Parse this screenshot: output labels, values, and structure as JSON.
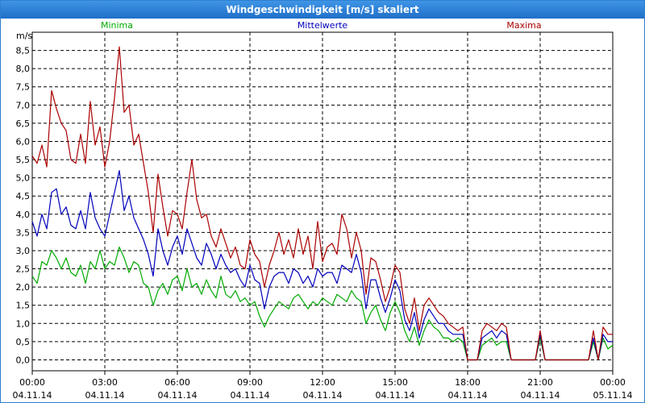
{
  "window": {
    "title": "Windgeschwindigkeit [m/s] skaliert"
  },
  "chart_data": {
    "type": "line",
    "title": "Windgeschwindigkeit [m/s] skaliert",
    "ylabel": "m/s",
    "xlabel": "",
    "ylim": [
      -0.3,
      9.0
    ],
    "xlim": [
      0,
      24
    ],
    "grid": true,
    "legend_placement": "top",
    "y_ticks": [
      "0,0",
      "0,5",
      "1,0",
      "1,5",
      "2,0",
      "2,5",
      "3,0",
      "3,5",
      "4,0",
      "4,5",
      "5,0",
      "5,5",
      "6,0",
      "6,5",
      "7,0",
      "7,5",
      "8,0",
      "8,5"
    ],
    "x_ticks": [
      {
        "time": "00:00",
        "date": "04.11.14"
      },
      {
        "time": "03:00",
        "date": "04.11.14"
      },
      {
        "time": "06:00",
        "date": "04.11.14"
      },
      {
        "time": "09:00",
        "date": "04.11.14"
      },
      {
        "time": "12:00",
        "date": "04.11.14"
      },
      {
        "time": "15:00",
        "date": "04.11.14"
      },
      {
        "time": "18:00",
        "date": "04.11.14"
      },
      {
        "time": "21:00",
        "date": "04.11.14"
      },
      {
        "time": "00:00",
        "date": "05.11.14"
      }
    ],
    "series": [
      {
        "name": "Minima",
        "color": "#00aa00",
        "legend_pos": "left",
        "x": [
          0,
          0.2,
          0.4,
          0.6,
          0.8,
          1,
          1.2,
          1.4,
          1.6,
          1.8,
          2,
          2.2,
          2.4,
          2.6,
          2.8,
          3,
          3.2,
          3.4,
          3.6,
          3.8,
          4,
          4.2,
          4.4,
          4.6,
          4.8,
          5,
          5.2,
          5.4,
          5.6,
          5.8,
          6,
          6.2,
          6.4,
          6.6,
          6.8,
          7,
          7.2,
          7.4,
          7.6,
          7.8,
          8,
          8.2,
          8.4,
          8.6,
          8.8,
          9,
          9.2,
          9.4,
          9.6,
          9.8,
          10,
          10.2,
          10.4,
          10.6,
          10.8,
          11,
          11.2,
          11.4,
          11.6,
          11.8,
          12,
          12.2,
          12.4,
          12.6,
          12.8,
          13,
          13.2,
          13.4,
          13.6,
          13.8,
          14,
          14.2,
          14.4,
          14.6,
          14.8,
          15,
          15.2,
          15.4,
          15.6,
          15.8,
          16,
          16.2,
          16.4,
          16.6,
          16.8,
          17,
          17.2,
          17.4,
          17.6,
          17.8,
          18,
          18.2,
          18.4,
          18.6,
          18.8,
          19,
          19.2,
          19.4,
          19.6,
          19.8,
          20,
          20.2,
          20.4,
          20.6,
          20.8,
          21,
          21.2,
          21.4,
          21.6,
          21.8,
          22,
          22.2,
          22.4,
          22.6,
          22.8,
          23,
          23.2,
          23.4,
          23.6,
          23.8,
          24
        ],
        "y": [
          2.3,
          2.1,
          2.7,
          2.6,
          3.0,
          2.8,
          2.5,
          2.8,
          2.4,
          2.3,
          2.6,
          2.1,
          2.7,
          2.5,
          3.0,
          2.5,
          2.7,
          2.6,
          3.1,
          2.8,
          2.4,
          2.7,
          2.6,
          2.1,
          2.0,
          1.5,
          1.9,
          2.1,
          1.8,
          2.2,
          2.3,
          1.9,
          2.5,
          2.0,
          2.1,
          1.8,
          2.2,
          1.9,
          1.7,
          2.3,
          1.8,
          1.7,
          1.9,
          1.6,
          1.7,
          1.5,
          1.6,
          1.2,
          0.9,
          1.2,
          1.4,
          1.6,
          1.5,
          1.4,
          1.7,
          1.8,
          1.6,
          1.4,
          1.6,
          1.5,
          1.7,
          1.6,
          1.5,
          1.8,
          1.7,
          1.6,
          1.9,
          1.7,
          1.6,
          1.0,
          1.3,
          1.5,
          1.1,
          0.8,
          1.3,
          1.6,
          1.3,
          0.8,
          0.5,
          0.9,
          0.4,
          0.8,
          1.1,
          0.9,
          0.8,
          0.6,
          0.6,
          0.5,
          0.6,
          0.5,
          0.0,
          0.0,
          0.0,
          0.4,
          0.5,
          0.6,
          0.4,
          0.5,
          0.5,
          0.0,
          0.0,
          0.0,
          0.0,
          0.0,
          0.0,
          0.6,
          0.0,
          0.0,
          0.0,
          0.0,
          0.0,
          0.0,
          0.0,
          0.0,
          0.0,
          0.0,
          0.5,
          0.0,
          0.6,
          0.3,
          0.4
        ]
      },
      {
        "name": "Mittelwerte",
        "color": "#0000bb",
        "legend_pos": "center",
        "x": [
          0,
          0.2,
          0.4,
          0.6,
          0.8,
          1,
          1.2,
          1.4,
          1.6,
          1.8,
          2,
          2.2,
          2.4,
          2.6,
          2.8,
          3,
          3.2,
          3.4,
          3.6,
          3.8,
          4,
          4.2,
          4.4,
          4.6,
          4.8,
          5,
          5.2,
          5.4,
          5.6,
          5.8,
          6,
          6.2,
          6.4,
          6.6,
          6.8,
          7,
          7.2,
          7.4,
          7.6,
          7.8,
          8,
          8.2,
          8.4,
          8.6,
          8.8,
          9,
          9.2,
          9.4,
          9.6,
          9.8,
          10,
          10.2,
          10.4,
          10.6,
          10.8,
          11,
          11.2,
          11.4,
          11.6,
          11.8,
          12,
          12.2,
          12.4,
          12.6,
          12.8,
          13,
          13.2,
          13.4,
          13.6,
          13.8,
          14,
          14.2,
          14.4,
          14.6,
          14.8,
          15,
          15.2,
          15.4,
          15.6,
          15.8,
          16,
          16.2,
          16.4,
          16.6,
          16.8,
          17,
          17.2,
          17.4,
          17.6,
          17.8,
          18,
          18.2,
          18.4,
          18.6,
          18.8,
          19,
          19.2,
          19.4,
          19.6,
          19.8,
          20,
          20.2,
          20.4,
          20.6,
          20.8,
          21,
          21.2,
          21.4,
          21.6,
          21.8,
          22,
          22.2,
          22.4,
          22.6,
          22.8,
          23,
          23.2,
          23.4,
          23.6,
          23.8,
          24
        ],
        "y": [
          3.8,
          3.4,
          4.0,
          3.6,
          4.6,
          4.7,
          4.0,
          4.2,
          3.7,
          3.6,
          4.1,
          3.6,
          4.6,
          3.9,
          3.6,
          3.4,
          4.0,
          4.6,
          5.2,
          4.1,
          4.5,
          3.9,
          3.6,
          3.3,
          2.9,
          2.3,
          3.6,
          3.0,
          2.6,
          3.1,
          3.4,
          2.9,
          3.6,
          3.2,
          2.8,
          2.6,
          3.2,
          2.9,
          2.5,
          2.9,
          2.6,
          2.4,
          2.5,
          2.2,
          2.0,
          2.6,
          2.2,
          2.1,
          1.4,
          2.0,
          2.3,
          2.4,
          2.4,
          2.1,
          2.5,
          2.4,
          2.1,
          2.3,
          2.0,
          2.5,
          2.3,
          2.4,
          2.4,
          2.1,
          2.6,
          2.5,
          2.4,
          2.9,
          2.4,
          1.4,
          2.2,
          2.2,
          1.7,
          1.3,
          1.7,
          2.2,
          1.9,
          1.1,
          0.8,
          1.3,
          0.6,
          1.1,
          1.4,
          1.2,
          1.0,
          1.0,
          0.8,
          0.7,
          0.7,
          0.7,
          0.0,
          0.0,
          0.0,
          0.6,
          0.7,
          0.8,
          0.6,
          0.8,
          0.7,
          0.0,
          0.0,
          0.0,
          0.0,
          0.0,
          0.0,
          0.7,
          0.0,
          0.0,
          0.0,
          0.0,
          0.0,
          0.0,
          0.0,
          0.0,
          0.0,
          0.0,
          0.6,
          0.0,
          0.7,
          0.5,
          0.5
        ]
      },
      {
        "name": "Maxima",
        "color": "#aa0000",
        "legend_pos": "right",
        "x": [
          0,
          0.2,
          0.4,
          0.6,
          0.8,
          1,
          1.2,
          1.4,
          1.6,
          1.8,
          2,
          2.2,
          2.4,
          2.6,
          2.8,
          3,
          3.2,
          3.4,
          3.6,
          3.8,
          4,
          4.2,
          4.4,
          4.6,
          4.8,
          5,
          5.2,
          5.4,
          5.6,
          5.8,
          6,
          6.2,
          6.4,
          6.6,
          6.8,
          7,
          7.2,
          7.4,
          7.6,
          7.8,
          8,
          8.2,
          8.4,
          8.6,
          8.8,
          9,
          9.2,
          9.4,
          9.6,
          9.8,
          10,
          10.2,
          10.4,
          10.6,
          10.8,
          11,
          11.2,
          11.4,
          11.6,
          11.8,
          12,
          12.2,
          12.4,
          12.6,
          12.8,
          13,
          13.2,
          13.4,
          13.6,
          13.8,
          14,
          14.2,
          14.4,
          14.6,
          14.8,
          15,
          15.2,
          15.4,
          15.6,
          15.8,
          16,
          16.2,
          16.4,
          16.6,
          16.8,
          17,
          17.2,
          17.4,
          17.6,
          17.8,
          18,
          18.2,
          18.4,
          18.6,
          18.8,
          19,
          19.2,
          19.4,
          19.6,
          19.8,
          20,
          20.2,
          20.4,
          20.6,
          20.8,
          21,
          21.2,
          21.4,
          21.6,
          21.8,
          22,
          22.2,
          22.4,
          22.6,
          22.8,
          23,
          23.2,
          23.4,
          23.6,
          23.8,
          24
        ],
        "y": [
          5.6,
          5.4,
          5.9,
          5.3,
          7.4,
          6.9,
          6.5,
          6.3,
          5.5,
          5.4,
          6.2,
          5.4,
          7.1,
          5.9,
          6.4,
          5.3,
          6.0,
          7.2,
          8.6,
          6.8,
          7.0,
          5.9,
          6.2,
          5.4,
          4.6,
          3.5,
          5.1,
          4.2,
          3.4,
          4.1,
          4.0,
          3.6,
          4.6,
          5.5,
          4.4,
          3.9,
          4.0,
          3.4,
          3.1,
          3.6,
          3.2,
          2.8,
          3.1,
          2.6,
          2.5,
          3.3,
          2.9,
          2.7,
          2.0,
          2.6,
          3.0,
          3.5,
          2.9,
          3.3,
          2.8,
          3.6,
          2.9,
          3.4,
          2.5,
          3.8,
          2.7,
          3.1,
          3.2,
          2.9,
          4.0,
          3.6,
          2.8,
          3.5,
          3.0,
          1.8,
          2.8,
          2.7,
          2.2,
          1.6,
          2.0,
          2.6,
          2.4,
          1.4,
          1.0,
          1.7,
          0.8,
          1.5,
          1.7,
          1.5,
          1.3,
          1.2,
          1.0,
          0.9,
          0.8,
          0.9,
          0.0,
          0.0,
          0.0,
          0.8,
          1.0,
          0.9,
          0.8,
          1.0,
          0.9,
          0.0,
          0.0,
          0.0,
          0.0,
          0.0,
          0.0,
          0.8,
          0.0,
          0.0,
          0.0,
          0.0,
          0.0,
          0.0,
          0.0,
          0.0,
          0.0,
          0.0,
          0.8,
          0.0,
          0.9,
          0.7,
          0.7
        ]
      }
    ]
  }
}
